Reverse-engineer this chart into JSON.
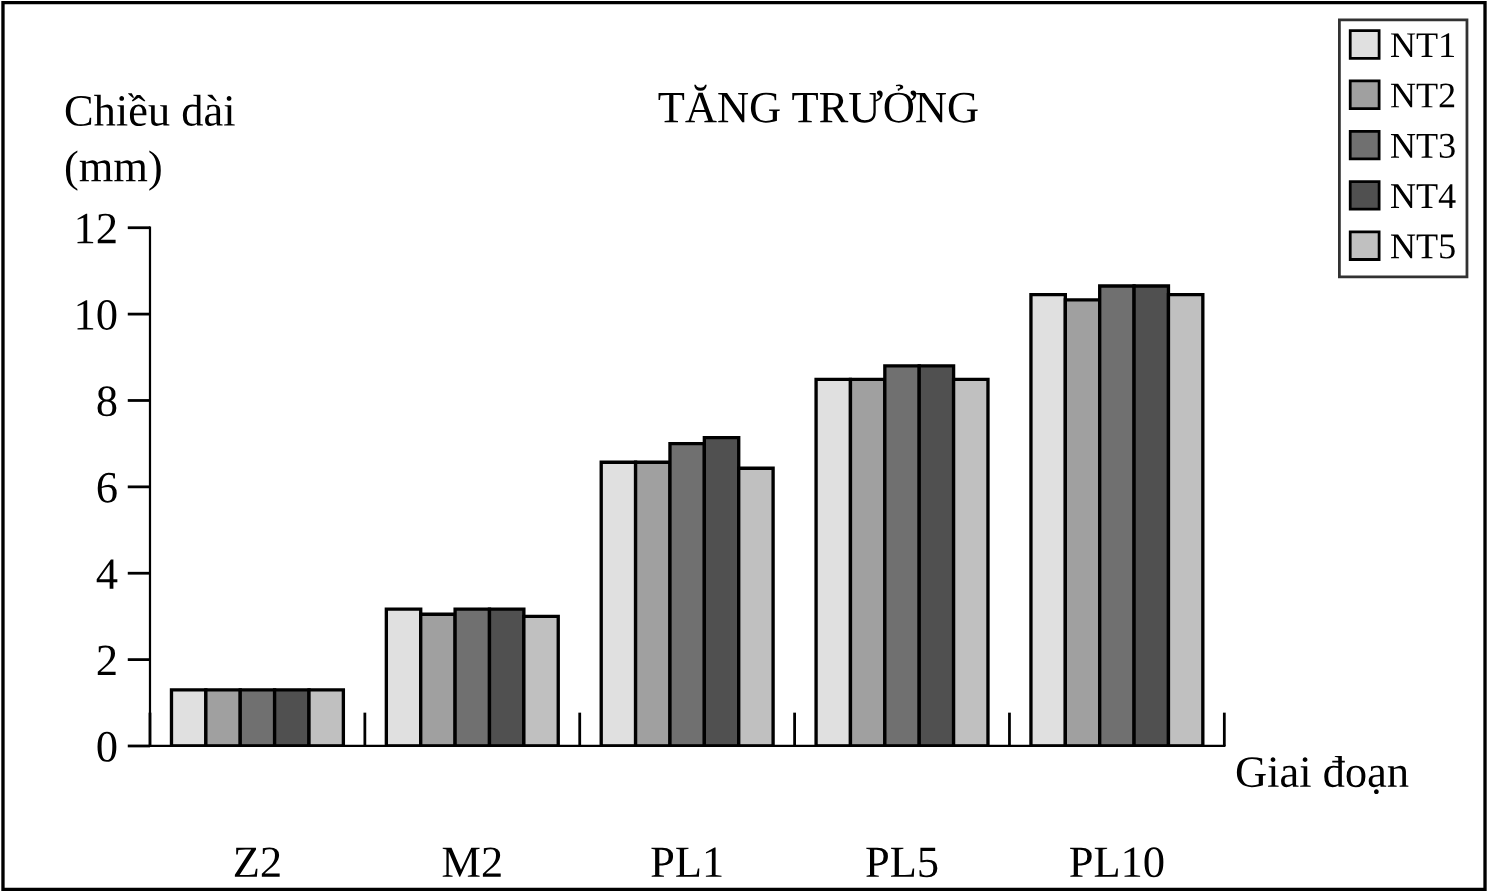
{
  "chart_data": {
    "type": "bar",
    "title": "TĂNG TRƯỞNG",
    "ylabel": "Chiều dài\n(mm)",
    "xlabel": "Giai đoạn",
    "categories": [
      "Z2",
      "M2",
      "PL1",
      "PL5",
      "PL10"
    ],
    "series": [
      {
        "name": "NT1",
        "color": "#e0e0e0",
        "values": [
          1.3,
          3.17,
          6.57,
          8.49,
          10.45
        ]
      },
      {
        "name": "NT2",
        "color": "#a0a0a0",
        "values": [
          1.3,
          3.05,
          6.57,
          8.49,
          10.33
        ]
      },
      {
        "name": "NT3",
        "color": "#707070",
        "values": [
          1.3,
          3.17,
          7.0,
          8.8,
          10.65
        ]
      },
      {
        "name": "NT4",
        "color": "#505050",
        "values": [
          1.3,
          3.17,
          7.14,
          8.8,
          10.65
        ]
      },
      {
        "name": "NT5",
        "color": "#c0c0c0",
        "values": [
          1.3,
          3.0,
          6.43,
          8.49,
          10.45
        ]
      }
    ],
    "ylim": [
      0,
      12
    ],
    "yticks": [
      0,
      2,
      4,
      6,
      8,
      10,
      12
    ],
    "grid": false,
    "legend": "top right"
  }
}
